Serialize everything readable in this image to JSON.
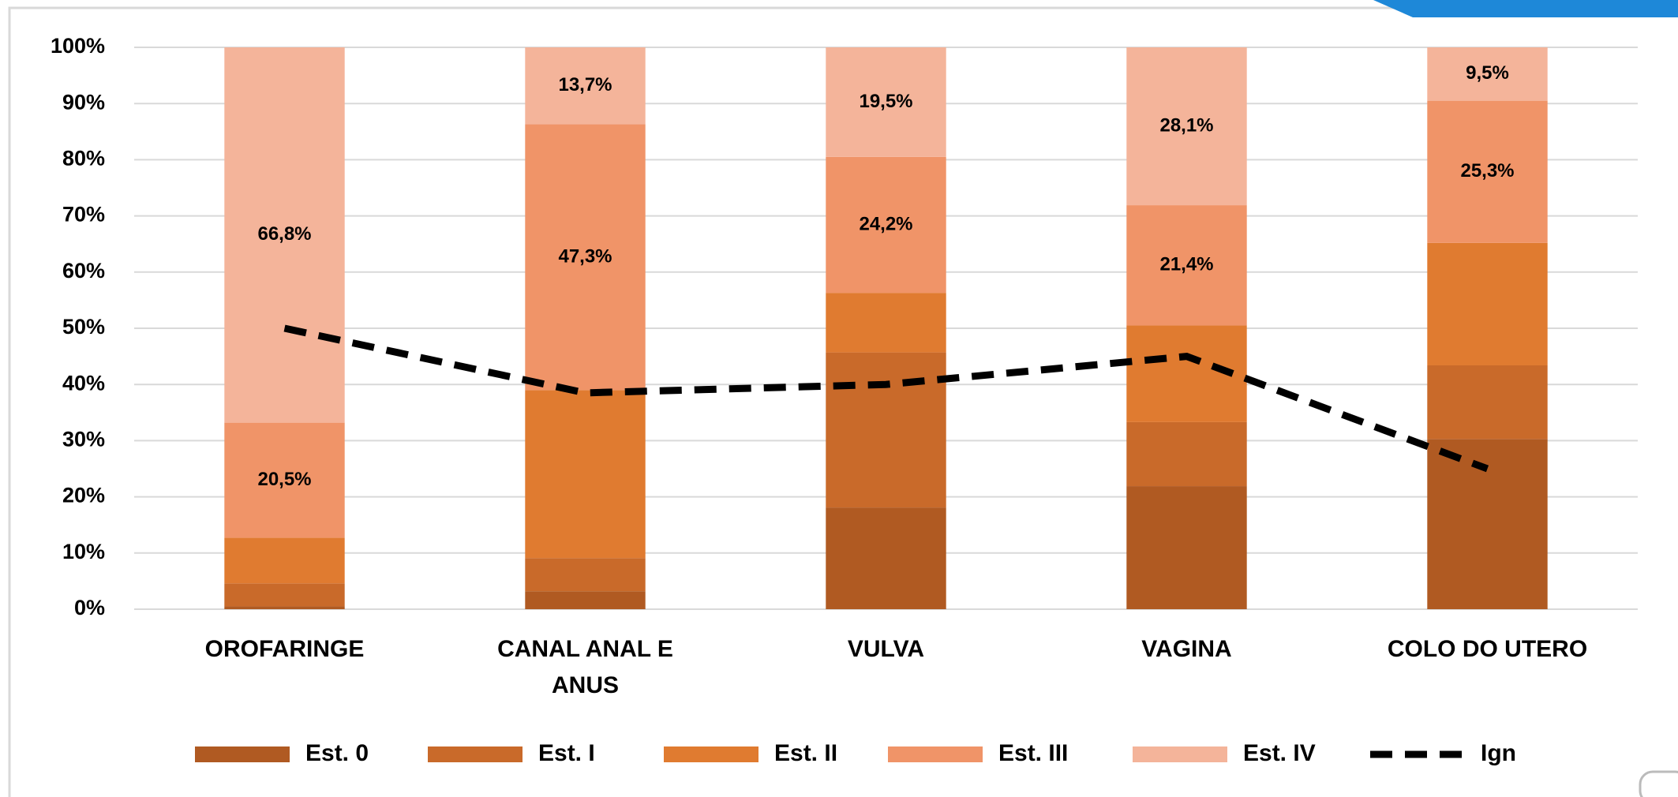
{
  "chart_data": {
    "type": "bar",
    "stacked": true,
    "categories": [
      "OROFARINGE",
      "CANAL ANAL E ANUS",
      "VULVA",
      "VAGINA",
      "COLO DO UTERO"
    ],
    "series": [
      {
        "name": "Est. 0",
        "color": "#b05a22",
        "values": [
          0.5,
          3.2,
          18.1,
          21.9,
          30.3
        ]
      },
      {
        "name": "Est. I",
        "color": "#c96a2a",
        "values": [
          4.1,
          5.9,
          27.6,
          11.4,
          13.1
        ]
      },
      {
        "name": "Est. II",
        "color": "#e07b30",
        "values": [
          8.1,
          29.9,
          10.6,
          17.2,
          21.8
        ]
      },
      {
        "name": "Est. III",
        "color": "#f09468",
        "values": [
          20.5,
          47.3,
          24.2,
          21.4,
          25.3
        ],
        "value_labels": [
          "20,5%",
          "47,3%",
          "24,2%",
          "21,4%",
          "25,3%"
        ]
      },
      {
        "name": "Est. IV",
        "color": "#f4b49a",
        "values": [
          66.8,
          13.7,
          19.5,
          28.1,
          9.5
        ],
        "value_labels": [
          "66,8%",
          "13,7%",
          "19,5%",
          "28,1%",
          "9,5%"
        ]
      },
      {
        "name": "Ign",
        "type": "line",
        "color": "#000000",
        "dashed": true,
        "values": [
          50,
          38.5,
          40,
          45,
          25
        ]
      }
    ],
    "ylim": [
      0,
      100
    ],
    "yticks": [
      {
        "value": 0,
        "label": "0%"
      },
      {
        "value": 10,
        "label": "10%"
      },
      {
        "value": 20,
        "label": "20%"
      },
      {
        "value": 30,
        "label": "30%"
      },
      {
        "value": 40,
        "label": "40%"
      },
      {
        "value": 50,
        "label": "50%"
      },
      {
        "value": 60,
        "label": "60%"
      },
      {
        "value": 70,
        "label": "70%"
      },
      {
        "value": 80,
        "label": "80%"
      },
      {
        "value": 90,
        "label": "90%"
      },
      {
        "value": 100,
        "label": "100%"
      }
    ],
    "grid": true,
    "legend": "bottom"
  }
}
